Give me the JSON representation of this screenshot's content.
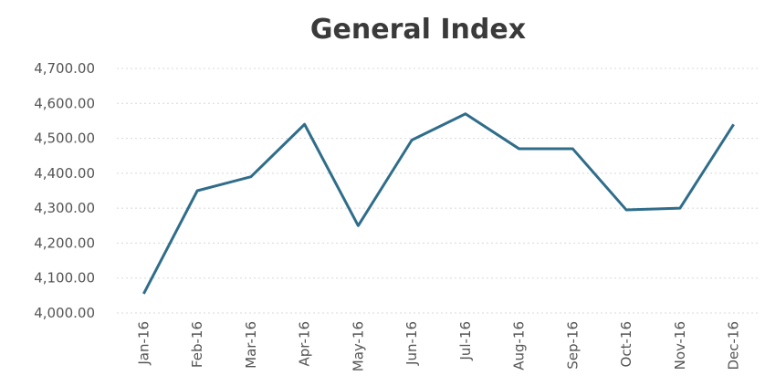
{
  "chart_data": {
    "type": "line",
    "title": "General Index",
    "categories": [
      "Jan-16",
      "Feb-16",
      "Mar-16",
      "Apr-16",
      "May-16",
      "Jun-16",
      "Jul-16",
      "Aug-16",
      "Sep-16",
      "Oct-16",
      "Nov-16",
      "Dec-16"
    ],
    "series": [
      {
        "name": "General Index",
        "color": "#2f6d8a",
        "values": [
          4055,
          4350,
          4390,
          4540,
          4250,
          4495,
          4570,
          4470,
          4470,
          4295,
          4300,
          4540
        ]
      }
    ],
    "ylim": [
      4000,
      4700
    ],
    "yticks": [
      {
        "value": 4000,
        "label": "4,000.00"
      },
      {
        "value": 4100,
        "label": "4,100.00"
      },
      {
        "value": 4200,
        "label": "4,200.00"
      },
      {
        "value": 4300,
        "label": "4,300.00"
      },
      {
        "value": 4400,
        "label": "4,400.00"
      },
      {
        "value": 4500,
        "label": "4,500.00"
      },
      {
        "value": 4600,
        "label": "4,600.00"
      },
      {
        "value": 4700,
        "label": "4,700.00"
      }
    ],
    "grid": true
  }
}
